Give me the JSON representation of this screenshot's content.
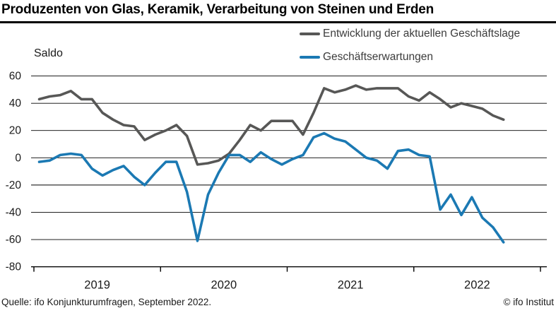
{
  "title": "Produzenten von Glas, Keramik, Verarbeitung von Steinen und Erden",
  "y_axis_label": "Saldo",
  "legend": [
    {
      "label": "Entwicklung der aktuellen Geschäftslage",
      "color": "#575756"
    },
    {
      "label": "Geschäftserwartungen",
      "color": "#1b79b3"
    }
  ],
  "footer": {
    "source": "Quelle: ifo Konjunkturumfragen, September 2022.",
    "copyright": "© ifo Institut"
  },
  "chart_data": {
    "type": "line",
    "title": "Produzenten von Glas, Keramik, Verarbeitung von Steinen und Erden",
    "ylabel": "Saldo",
    "ylim": [
      -80,
      60
    ],
    "y_ticks": [
      60,
      40,
      20,
      0,
      -20,
      -40,
      -60,
      -80
    ],
    "x_tick_labels": [
      "2019",
      "2020",
      "2021",
      "2022"
    ],
    "grid": true,
    "legend_position": "top-right",
    "x": [
      "2019-01",
      "2019-02",
      "2019-03",
      "2019-04",
      "2019-05",
      "2019-06",
      "2019-07",
      "2019-08",
      "2019-09",
      "2019-10",
      "2019-11",
      "2019-12",
      "2020-01",
      "2020-02",
      "2020-03",
      "2020-04",
      "2020-05",
      "2020-06",
      "2020-07",
      "2020-08",
      "2020-09",
      "2020-10",
      "2020-11",
      "2020-12",
      "2021-01",
      "2021-02",
      "2021-03",
      "2021-04",
      "2021-05",
      "2021-06",
      "2021-07",
      "2021-08",
      "2021-09",
      "2021-10",
      "2021-11",
      "2021-12",
      "2022-01",
      "2022-02",
      "2022-03",
      "2022-04",
      "2022-05",
      "2022-06",
      "2022-07",
      "2022-08",
      "2022-09"
    ],
    "series": [
      {
        "name": "Entwicklung der aktuellen Geschäftslage",
        "color": "#575756",
        "values": [
          43,
          45,
          46,
          49,
          43,
          43,
          33,
          28,
          24,
          23,
          13,
          17,
          20,
          24,
          16,
          -5,
          -4,
          -2,
          3,
          13,
          24,
          20,
          27,
          27,
          27,
          17,
          33,
          51,
          48,
          50,
          53,
          50,
          51,
          51,
          51,
          45,
          42,
          48,
          43,
          37,
          40,
          38,
          36,
          31,
          28
        ]
      },
      {
        "name": "Geschäftserwartungen",
        "color": "#1b79b3",
        "values": [
          -3,
          -2,
          2,
          3,
          2,
          -8,
          -13,
          -9,
          -6,
          -14,
          -20,
          -11,
          -3,
          -3,
          -25,
          -61,
          -27,
          -11,
          2,
          2,
          -3,
          4,
          -1,
          -5,
          -1,
          2,
          15,
          18,
          14,
          12,
          6,
          0,
          -2,
          -8,
          5,
          6,
          2,
          1,
          -38,
          -27,
          -42,
          -29,
          -44,
          -51,
          -62
        ]
      }
    ]
  }
}
